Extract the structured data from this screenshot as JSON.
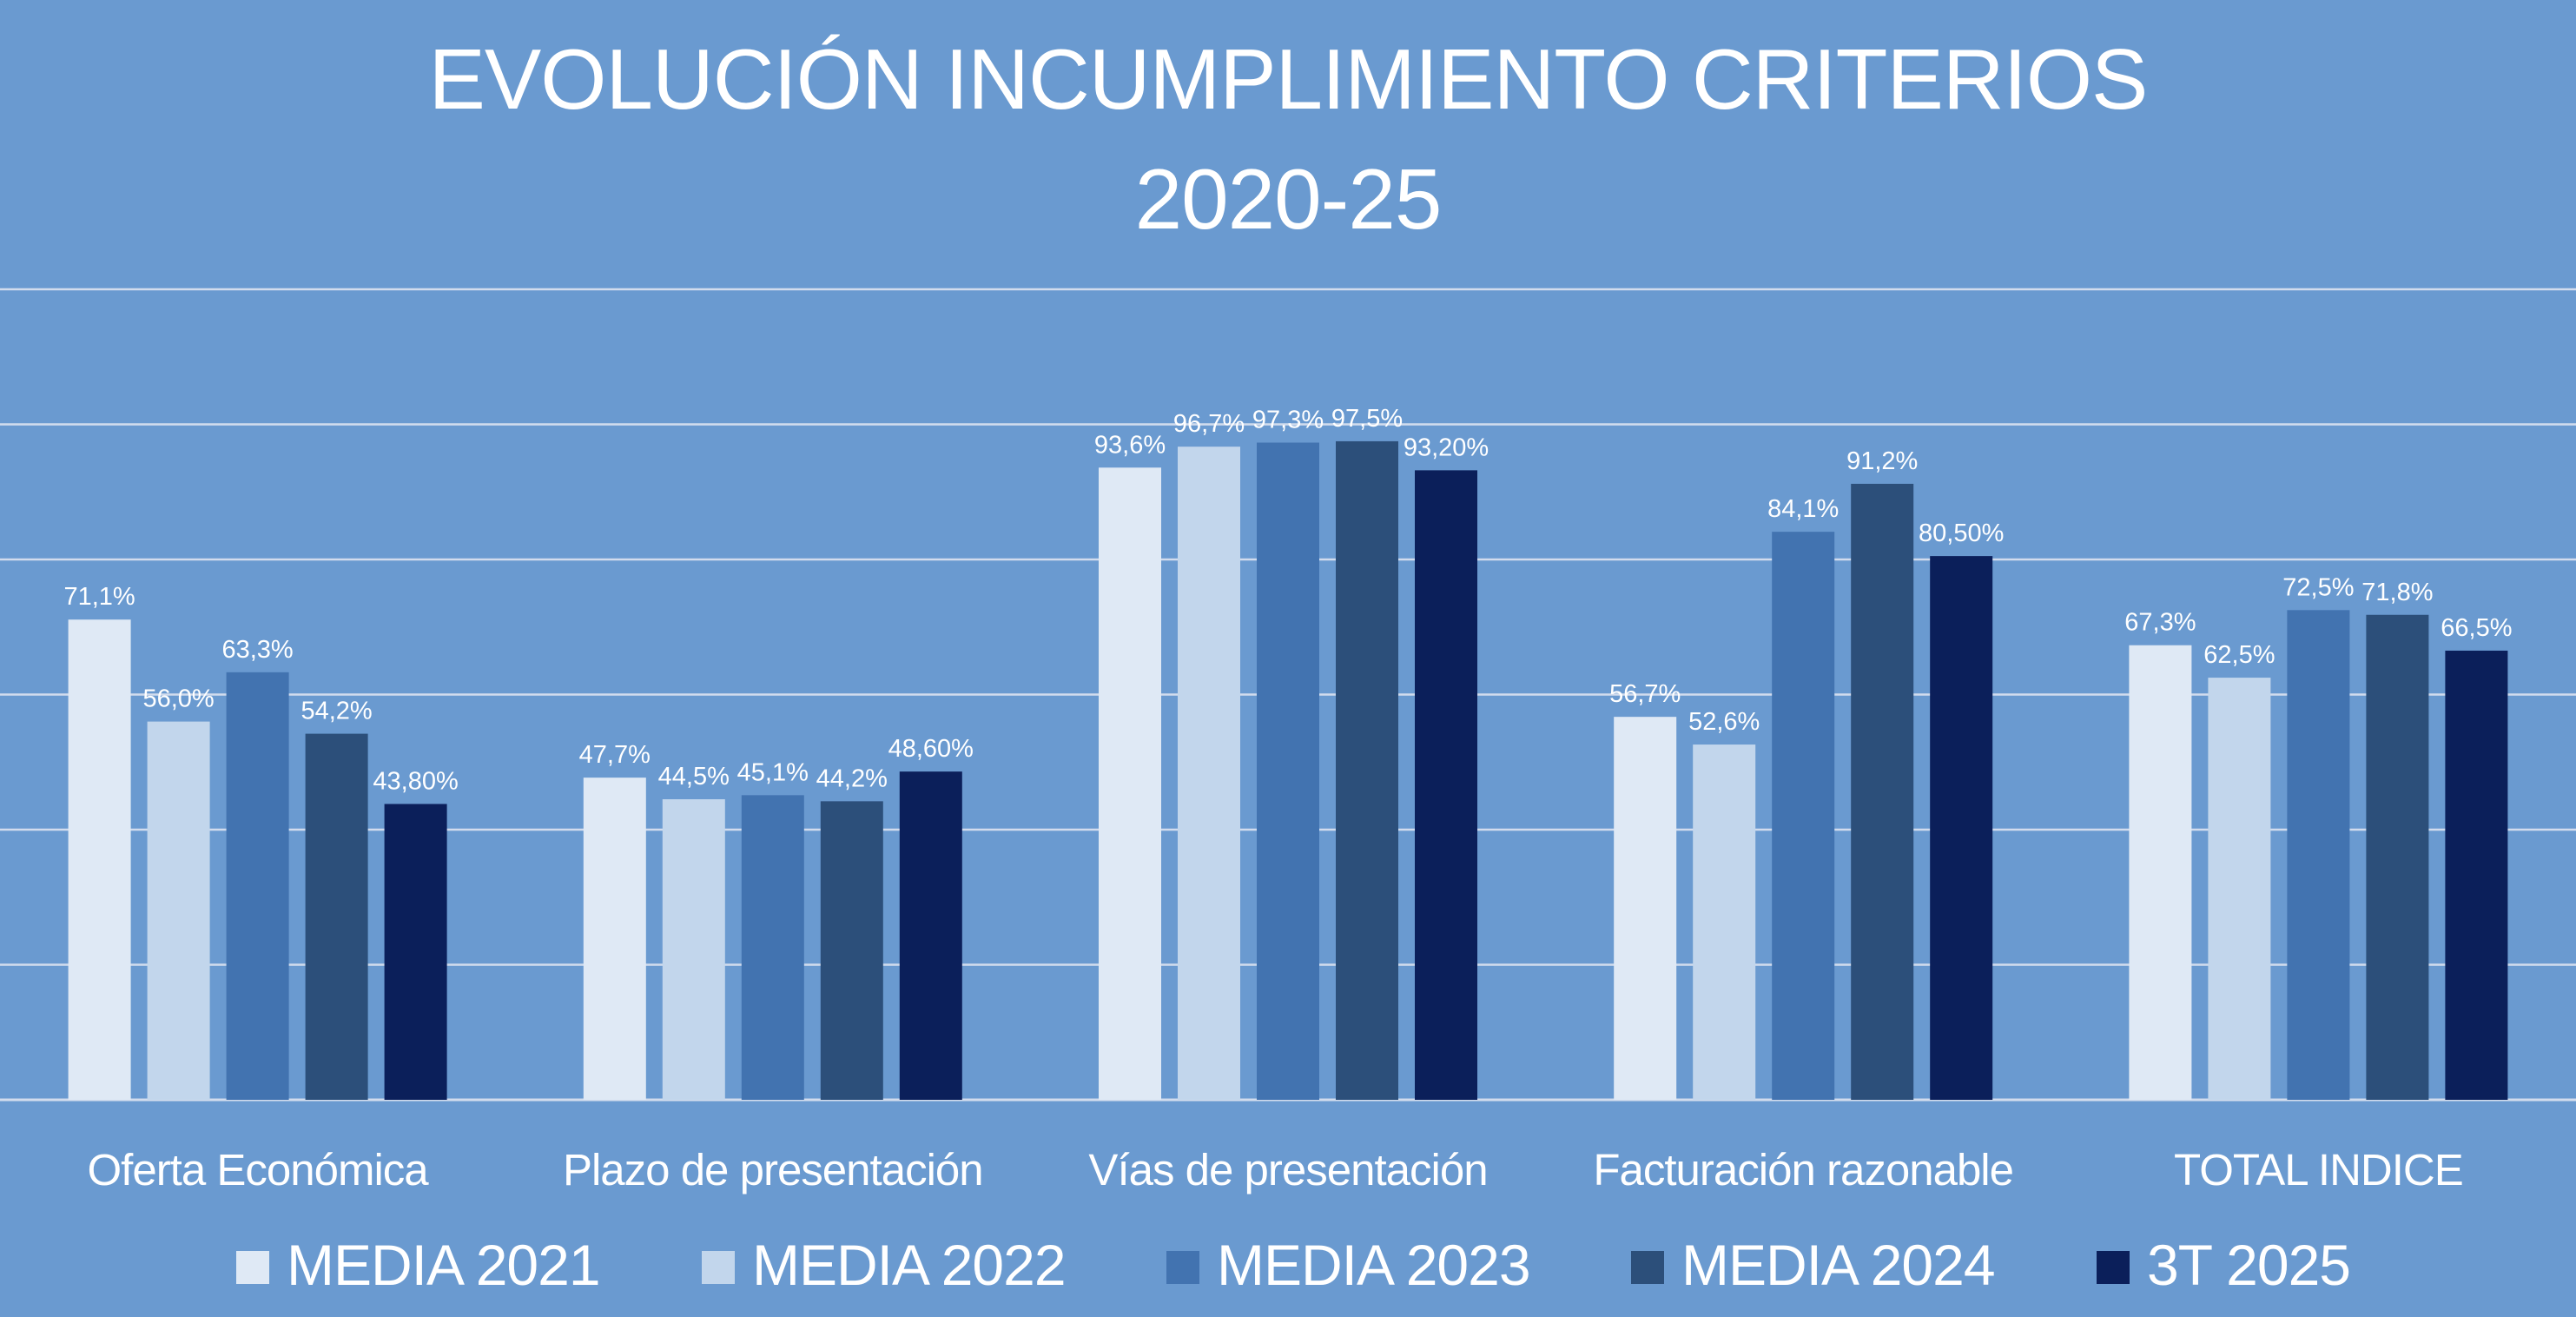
{
  "chart_data": {
    "type": "bar",
    "title": "EVOLUCIÓN INCUMPLIMIENTO CRITERIOS",
    "subtitle": "2020-25",
    "xlabel": "",
    "ylabel": "",
    "ylim": [
      0,
      120
    ],
    "yticks": [
      0,
      20,
      40,
      60,
      80,
      100,
      120
    ],
    "grid": true,
    "y_axis_labels_visible": false,
    "legend_position": "bottom",
    "categories": [
      "Oferta Económica",
      "Plazo de presentación",
      "Vías de presentación",
      "Facturación razonable",
      "TOTAL INDICE"
    ],
    "series": [
      {
        "name": "MEDIA 2021",
        "color": "#dfe9f5",
        "values": [
          71.1,
          47.7,
          93.6,
          56.7,
          67.3
        ],
        "labels": [
          "71,1%",
          "47,7%",
          "93,6%",
          "56,7%",
          "67,3%"
        ]
      },
      {
        "name": "MEDIA 2022",
        "color": "#c2d6ec",
        "values": [
          56.0,
          44.5,
          96.7,
          52.6,
          62.5
        ],
        "labels": [
          "56,0%",
          "44,5%",
          "96,7%",
          "52,6%",
          "62,5%"
        ]
      },
      {
        "name": "MEDIA 2023",
        "color": "#4273b0",
        "values": [
          63.3,
          45.1,
          97.3,
          84.1,
          72.5
        ],
        "labels": [
          "63,3%",
          "45,1%",
          "97,3%",
          "84,1%",
          "72,5%"
        ]
      },
      {
        "name": "MEDIA 2024",
        "color": "#2c4f7a",
        "values": [
          54.2,
          44.2,
          97.5,
          91.2,
          71.8
        ],
        "labels": [
          "54,2%",
          "44,2%",
          "97,5%",
          "91,2%",
          "71,8%"
        ]
      },
      {
        "name": "3T 2025",
        "color": "#0b1f5a",
        "values": [
          43.8,
          48.6,
          93.2,
          80.5,
          66.5
        ],
        "labels": [
          "43,80%",
          "48,60%",
          "93,20%",
          "80,50%",
          "66,5%"
        ]
      }
    ]
  },
  "colors": {
    "background": "#6a9ad0",
    "gridline": "#d2dced",
    "text": "#ffffff"
  }
}
